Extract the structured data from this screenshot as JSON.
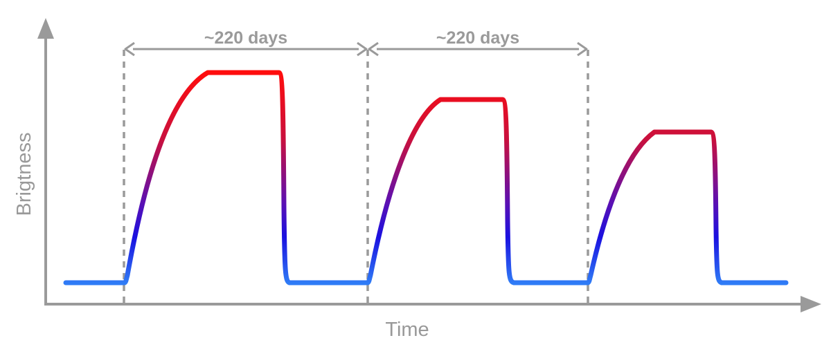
{
  "diagram": {
    "x_axis_label": "Time",
    "y_axis_label": "Brigtness",
    "spans": [
      {
        "label": "~220 days"
      },
      {
        "label": "~220 days"
      }
    ],
    "pulses": [
      {
        "peak_relative_brightness": 1.0
      },
      {
        "peak_relative_brightness": 0.87
      },
      {
        "peak_relative_brightness": 0.71
      }
    ],
    "colors": {
      "axis": "#9a9a9a",
      "guides": "#9a9a9a",
      "curve_low": "#2f7cf6",
      "curve_mid": "#1a10e0",
      "curve_high": "#ff0d0d",
      "text": "#999999"
    }
  }
}
